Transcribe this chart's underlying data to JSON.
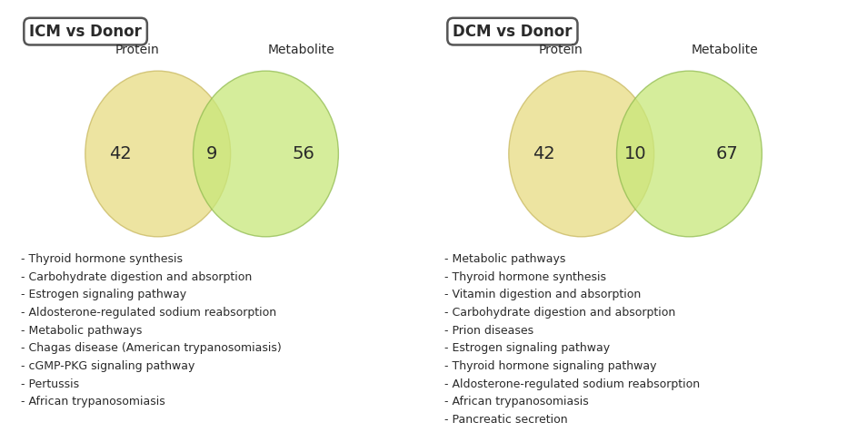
{
  "icm_title": "ICM vs Donor",
  "dcm_title": "DCM vs Donor",
  "icm_left_num": "42",
  "icm_center_num": "9",
  "icm_right_num": "56",
  "dcm_left_num": "42",
  "dcm_center_num": "10",
  "dcm_right_num": "67",
  "protein_color": "#E8DC82",
  "metabolite_color": "#C8E87A",
  "icm_pathways": [
    "Thyroid hormone synthesis",
    "Carbohydrate digestion and absorption",
    "Estrogen signaling pathway",
    "Aldosterone-regulated sodium reabsorption",
    "Metabolic pathways",
    "Chagas disease (American trypanosomiasis)",
    "cGMP-PKG signaling pathway",
    "Pertussis",
    "African trypanosomiasis"
  ],
  "dcm_pathways": [
    "Metabolic pathways",
    "Thyroid hormone synthesis",
    "Vitamin digestion and absorption",
    "Carbohydrate digestion and absorption",
    "Prion diseases",
    "Estrogen signaling pathway",
    "Thyroid hormone signaling pathway",
    "Aldosterone-regulated sodium reabsorption",
    "African trypanosomiasis",
    "Pancreatic secretion"
  ],
  "bg_color": "#ffffff",
  "text_color": "#2a2a2a",
  "title_fontsize": 12,
  "label_fontsize": 10,
  "number_fontsize": 14,
  "pathway_fontsize": 9
}
